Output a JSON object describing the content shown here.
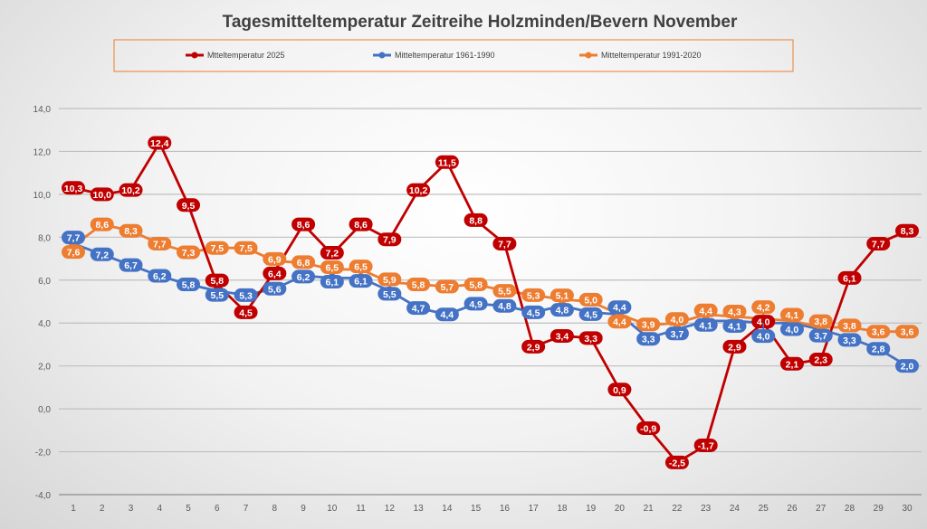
{
  "chart_data": {
    "type": "line",
    "title": "Tagesmitteltemperatur Zeitreihe Holzminden/Bevern November",
    "xlabel": "",
    "ylabel": "",
    "x": [
      1,
      2,
      3,
      4,
      5,
      6,
      7,
      8,
      9,
      10,
      11,
      12,
      13,
      14,
      15,
      16,
      17,
      18,
      19,
      20,
      21,
      22,
      23,
      24,
      25,
      26,
      27,
      28,
      29,
      30
    ],
    "ylim": [
      -4,
      14
    ],
    "yticks": [
      -4,
      -2,
      0,
      2,
      4,
      6,
      8,
      10,
      12,
      14
    ],
    "grid": true,
    "legend_position": "top",
    "series": [
      {
        "name": "Mtteltemperatur 2025",
        "color": "#c00000",
        "values": [
          10.3,
          10.0,
          10.2,
          12.4,
          9.5,
          5.8,
          4.5,
          6.4,
          8.6,
          7.2,
          8.6,
          7.9,
          10.2,
          11.5,
          8.8,
          7.7,
          2.9,
          3.4,
          3.3,
          0.9,
          -0.9,
          -2.5,
          -1.7,
          2.9,
          4.0,
          2.1,
          2.3,
          6.1,
          7.7,
          8.3
        ]
      },
      {
        "name": "Mitteltemperatur 1961-1990",
        "color": "#4472c4",
        "values": [
          7.7,
          7.2,
          6.7,
          6.2,
          5.8,
          5.5,
          5.3,
          5.6,
          6.2,
          6.1,
          6.1,
          5.5,
          4.7,
          4.4,
          4.9,
          4.8,
          4.5,
          4.8,
          4.5,
          4.4,
          3.3,
          3.7,
          4.1,
          4.1,
          4.0,
          4.0,
          3.7,
          3.3,
          2.8,
          2.0
        ]
      },
      {
        "name": "Mitteltemperatur 1991-2020",
        "color": "#ed7d31",
        "values": [
          7.6,
          8.6,
          8.3,
          7.7,
          7.3,
          7.5,
          7.5,
          6.9,
          6.8,
          6.5,
          6.5,
          5.9,
          5.8,
          5.7,
          5.8,
          5.5,
          5.3,
          5.1,
          5.0,
          4.4,
          3.9,
          4.0,
          4.4,
          4.3,
          4.2,
          4.1,
          3.8,
          3.8,
          3.6,
          3.6
        ]
      }
    ]
  }
}
